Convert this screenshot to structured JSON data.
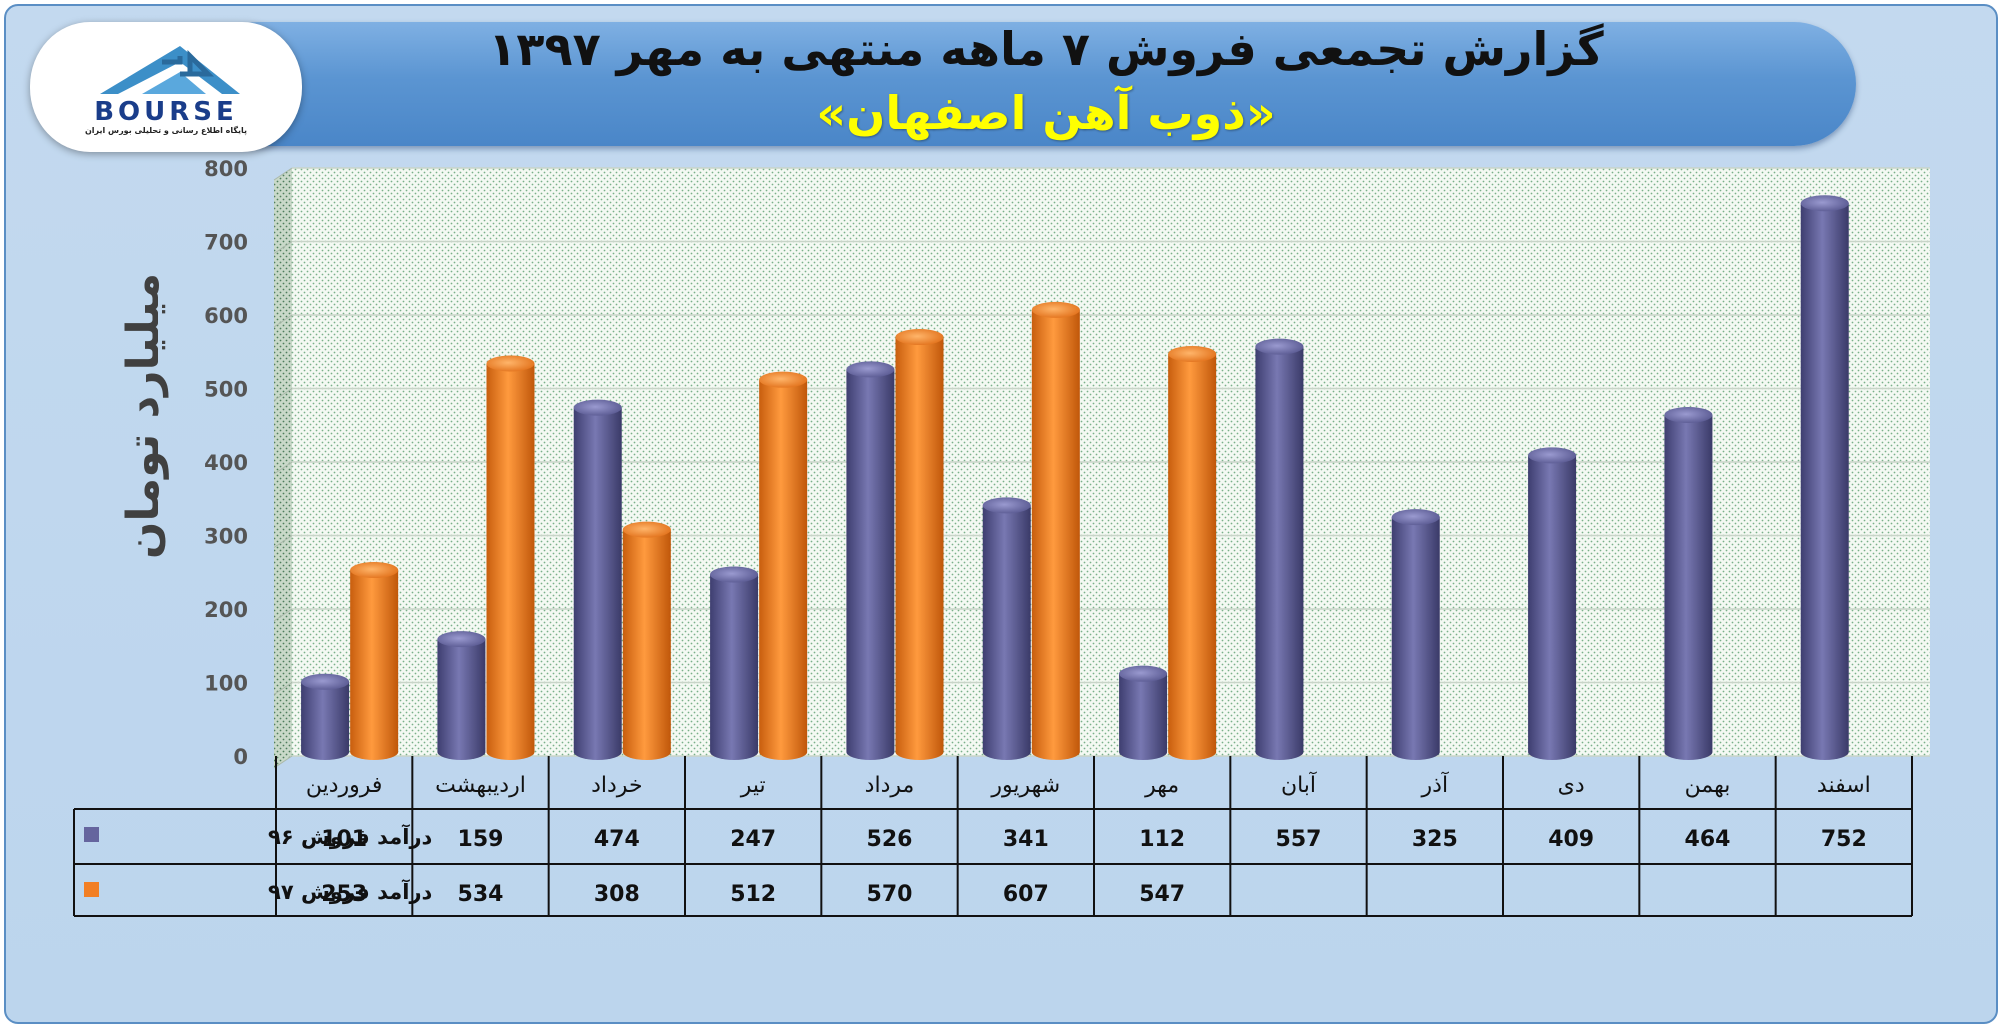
{
  "header": {
    "title": "گزارش تجمعی فروش ۷ ماهه منتهی به مهر ۱۳۹۷",
    "subtitle": "«ذوب آهن اصفهان»"
  },
  "logo": {
    "wordmark": "BOURSE",
    "caption": "پایگاه اطلاع رسانی و تحلیلی بورس ایران"
  },
  "colors": {
    "series96": "#65659e",
    "series97": "#f27f24",
    "banner": "#5b95d2",
    "subtitle": "#ffff00"
  },
  "chart_data": {
    "type": "bar",
    "ylabel": "میلیارد تومان",
    "ylim": [
      0,
      800
    ],
    "yticks": [
      "800",
      "700",
      "600",
      "500",
      "400",
      "300",
      "200",
      "100",
      "0"
    ],
    "grid": true,
    "legend": "data-table",
    "categories": [
      "فروردین",
      "اردیبهشت",
      "خرداد",
      "تیر",
      "مرداد",
      "شهریور",
      "مهر",
      "آبان",
      "آذر",
      "دی",
      "بهمن",
      "اسفند"
    ],
    "series": [
      {
        "name": "درآمد فروش ۹۶",
        "values": [
          101,
          159,
          474,
          247,
          526,
          341,
          112,
          557,
          325,
          409,
          464,
          752
        ]
      },
      {
        "name": "درآمد فروش ۹۷",
        "values": [
          253,
          534,
          308,
          512,
          570,
          607,
          547,
          null,
          null,
          null,
          null,
          null
        ]
      }
    ]
  }
}
